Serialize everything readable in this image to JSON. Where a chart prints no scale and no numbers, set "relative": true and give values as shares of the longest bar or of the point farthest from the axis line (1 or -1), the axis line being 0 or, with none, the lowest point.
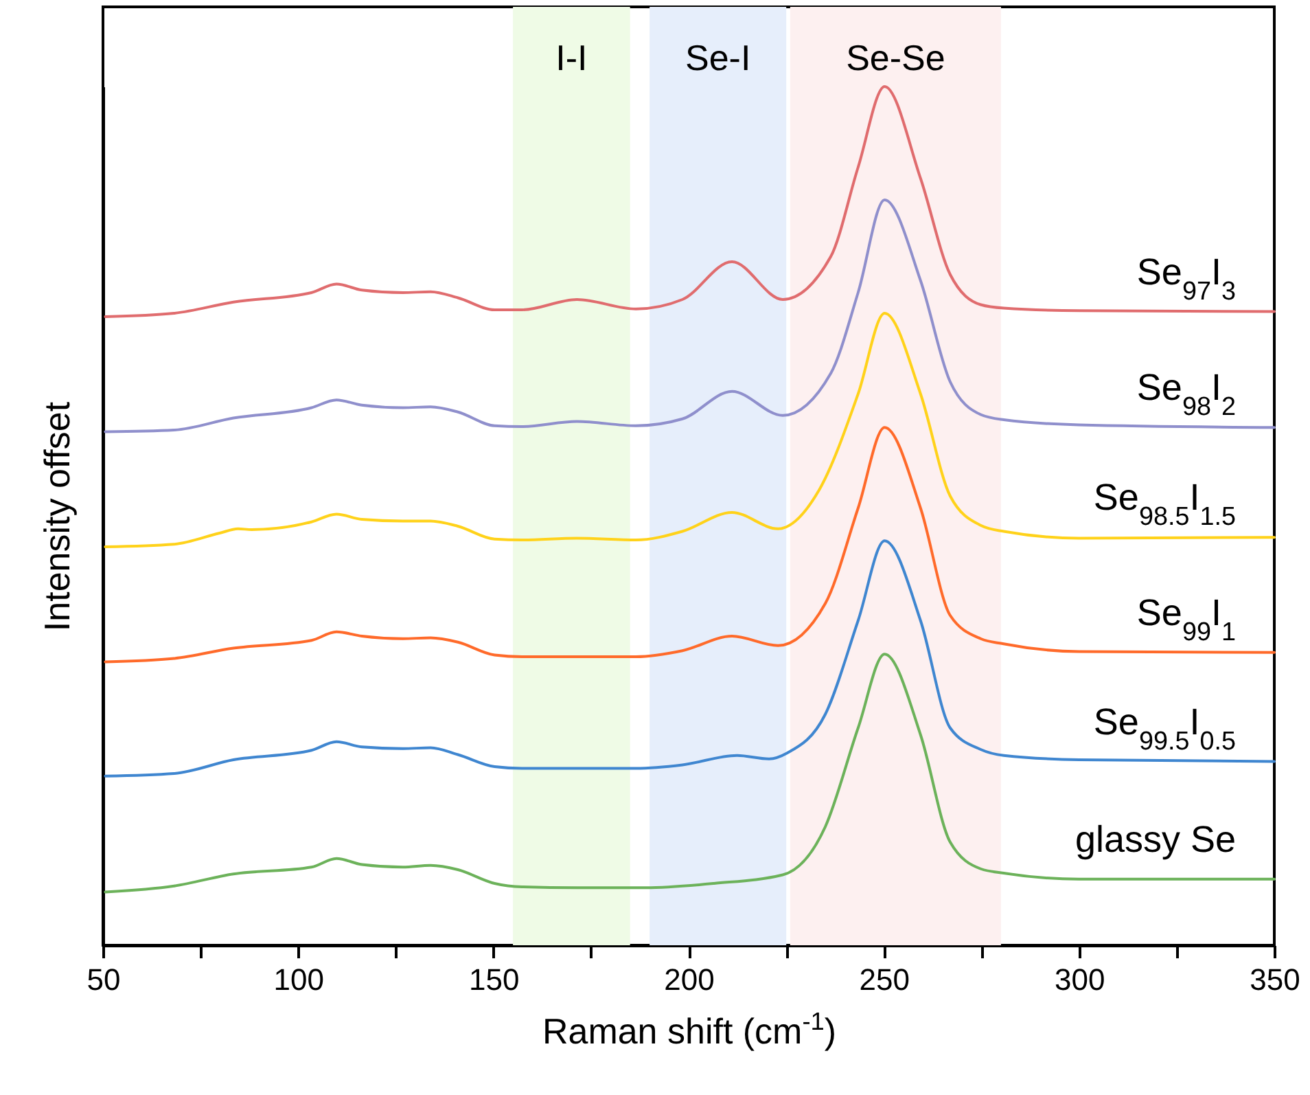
{
  "chart_data": {
    "type": "line",
    "relative": true,
    "xlabel": "Raman shift (cm$^{-1}$)",
    "ylabel": "Intensity offset",
    "xlim": [
      50,
      350
    ],
    "xticks": [
      50,
      {
        "value": 75,
        "label": null
      },
      100,
      {
        "value": 125,
        "label": null
      },
      150,
      {
        "value": 175,
        "label": null
      },
      200,
      {
        "value": 225,
        "label": null
      },
      250,
      {
        "value": 275,
        "label": null
      },
      300,
      {
        "value": 325,
        "label": null
      },
      350
    ],
    "bands": [
      {
        "axis": "x",
        "from": 155,
        "to": 185,
        "label": "I-I",
        "color": "#effbe6"
      },
      {
        "axis": "x",
        "from": 190,
        "to": 225,
        "label": "Se-I",
        "color": "#e6eefb"
      },
      {
        "axis": "x",
        "from": 226,
        "to": 280,
        "label": "Se-Se",
        "color": "#fdf0f0"
      }
    ],
    "series": [
      {
        "name": "Se$_{97}$I$_{3}$",
        "color": "#e06c6e",
        "x": [
          50.6,
          68.2,
          83.4,
          103.4,
          109.8,
          116.3,
          126.8,
          133.9,
          140.9,
          150.3,
          157.3,
          171.4,
          186.5,
          198.4,
          211.1,
          224.1,
          236.4,
          243.4,
          250.2,
          259.4,
          267,
          274.8,
          280.7,
          300,
          350
        ],
        "values": [
          0.732,
          0.736,
          0.749,
          0.76,
          0.77,
          0.763,
          0.76,
          0.761,
          0.754,
          0.74,
          0.74,
          0.752,
          0.741,
          0.752,
          0.796,
          0.752,
          0.802,
          0.906,
          1.0,
          0.893,
          0.781,
          0.746,
          0.742,
          0.739,
          0.738
        ]
      },
      {
        "name": "Se$_{98}$I$_{2}$",
        "color": "#8f8fcc",
        "x": [
          50.6,
          68.2,
          83.4,
          103.4,
          109.8,
          116.3,
          126.8,
          133.9,
          140.9,
          150.3,
          157.3,
          171.4,
          186.5,
          198.4,
          211.1,
          224.1,
          236.4,
          243.4,
          250.2,
          259.4,
          267,
          274.8,
          280.7,
          300,
          350
        ],
        "values": [
          0.598,
          0.6,
          0.614,
          0.626,
          0.635,
          0.629,
          0.626,
          0.627,
          0.621,
          0.605,
          0.604,
          0.61,
          0.605,
          0.613,
          0.645,
          0.617,
          0.666,
          0.76,
          0.868,
          0.774,
          0.656,
          0.618,
          0.612,
          0.606,
          0.603
        ]
      },
      {
        "name": "Se$_{98.5}$I$_{1.5}$",
        "color": "#ffd21a",
        "x": [
          50.6,
          68.2,
          79.9,
          84.6,
          88.1,
          103.4,
          109.8,
          116.3,
          126.8,
          133.9,
          140.9,
          150.3,
          157.3,
          171.4,
          186.5,
          198.4,
          211.1,
          222.9,
          233.4,
          243.4,
          250.2,
          259.4,
          267,
          274.8,
          280.7,
          300,
          350
        ],
        "values": [
          0.464,
          0.467,
          0.48,
          0.485,
          0.484,
          0.493,
          0.502,
          0.496,
          0.494,
          0.494,
          0.488,
          0.473,
          0.472,
          0.474,
          0.472,
          0.482,
          0.504,
          0.485,
          0.53,
          0.642,
          0.736,
          0.642,
          0.523,
          0.489,
          0.482,
          0.474,
          0.475
        ]
      },
      {
        "name": "Se$_{99}$I$_{1}$",
        "color": "#ff6a2a",
        "x": [
          50.6,
          68.2,
          83.4,
          103.4,
          109.8,
          116.3,
          126.8,
          133.9,
          140.9,
          150.3,
          157.3,
          171.4,
          186.5,
          198.4,
          211.1,
          222.9,
          235,
          243.4,
          250.2,
          259.4,
          267,
          274.8,
          280.7,
          300,
          350
        ],
        "values": [
          0.33,
          0.334,
          0.346,
          0.355,
          0.365,
          0.36,
          0.357,
          0.358,
          0.353,
          0.338,
          0.336,
          0.336,
          0.336,
          0.343,
          0.36,
          0.349,
          0.398,
          0.509,
          0.603,
          0.509,
          0.384,
          0.357,
          0.351,
          0.342,
          0.341
        ]
      },
      {
        "name": "Se$_{99.5}$I$_{0.5}$",
        "color": "#3f86d0",
        "x": [
          50.6,
          68.2,
          83.4,
          103.4,
          109.8,
          116.3,
          126.8,
          133.9,
          140.9,
          150.3,
          157.3,
          171.4,
          186.5,
          198.4,
          212.4,
          220.6,
          225.3,
          235,
          243.4,
          250.2,
          259.4,
          267,
          274.8,
          280.7,
          300,
          350
        ],
        "values": [
          0.197,
          0.2,
          0.216,
          0.227,
          0.237,
          0.231,
          0.229,
          0.23,
          0.222,
          0.208,
          0.206,
          0.206,
          0.206,
          0.21,
          0.221,
          0.217,
          0.224,
          0.269,
          0.378,
          0.471,
          0.378,
          0.253,
          0.228,
          0.221,
          0.216,
          0.214
        ]
      },
      {
        "name": "glassy Se",
        "color": "#6cb25a",
        "x": [
          50.6,
          68.2,
          83.4,
          103.4,
          109.8,
          116.3,
          126.8,
          133.9,
          140.9,
          150.3,
          157.3,
          171.4,
          189,
          206.5,
          224.1,
          235,
          243.4,
          250.2,
          259.4,
          267,
          274.8,
          280.7,
          300,
          350
        ],
        "values": [
          0.062,
          0.069,
          0.083,
          0.091,
          0.101,
          0.094,
          0.091,
          0.093,
          0.088,
          0.072,
          0.068,
          0.067,
          0.067,
          0.072,
          0.082,
          0.138,
          0.253,
          0.339,
          0.245,
          0.12,
          0.089,
          0.084,
          0.077,
          0.077
        ]
      }
    ]
  }
}
